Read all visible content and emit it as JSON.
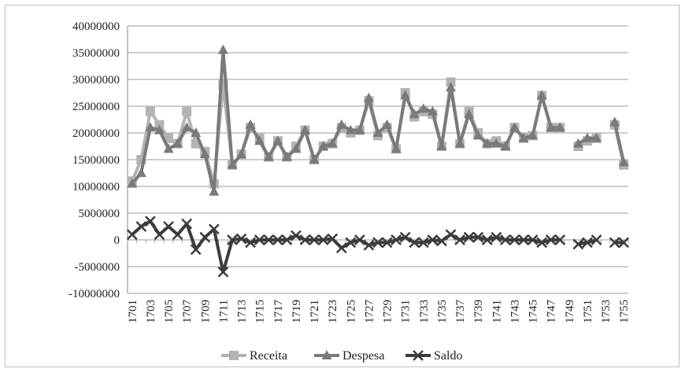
{
  "chart_data": {
    "type": "line",
    "title": "",
    "xlabel": "",
    "ylabel": "",
    "ylim": [
      -10000000,
      40000000
    ],
    "y_ticks": [
      "40000000",
      "35000000",
      "30000000",
      "25000000",
      "20000000",
      "15000000",
      "10000000",
      "5000000",
      "0",
      "-5000000",
      "-10000000"
    ],
    "x_tick_labels": [
      "1701",
      "1703",
      "1705",
      "1707",
      "1709",
      "1711",
      "1713",
      "1715",
      "1717",
      "1719",
      "1721",
      "1723",
      "1725",
      "1727",
      "1729",
      "1731",
      "1733",
      "1735",
      "1737",
      "1739",
      "1741",
      "1743",
      "1745",
      "1747",
      "1749",
      "1751",
      "1753",
      "1755"
    ],
    "x": [
      1701,
      1702,
      1703,
      1704,
      1705,
      1706,
      1707,
      1708,
      1709,
      1710,
      1711,
      1712,
      1713,
      1714,
      1715,
      1716,
      1717,
      1718,
      1719,
      1720,
      1721,
      1722,
      1723,
      1724,
      1725,
      1726,
      1727,
      1728,
      1729,
      1730,
      1731,
      1732,
      1733,
      1734,
      1735,
      1736,
      1737,
      1738,
      1739,
      1740,
      1741,
      1742,
      1743,
      1744,
      1745,
      1746,
      1747,
      1748,
      1749,
      1750,
      1751,
      1752,
      1753,
      1754,
      1755
    ],
    "grid": "horizontal",
    "legend_position": "bottom",
    "series": [
      {
        "name": "Receita",
        "color": "#b3b3b3",
        "marker": "square",
        "values": [
          11000000,
          15000000,
          24000000,
          21500000,
          19000000,
          18000000,
          24000000,
          18000000,
          16500000,
          10500000,
          29000000,
          14000000,
          16000000,
          21000000,
          19000000,
          15500000,
          18500000,
          15500000,
          17500000,
          20500000,
          15000000,
          17500000,
          18000000,
          21000000,
          20000000,
          20500000,
          26000000,
          19500000,
          21000000,
          17000000,
          27500000,
          23000000,
          24000000,
          23500000,
          17500000,
          29500000,
          18000000,
          24000000,
          20000000,
          18000000,
          18500000,
          17500000,
          21000000,
          19000000,
          19500000,
          27000000,
          21000000,
          21000000,
          null,
          17500000,
          18500000,
          19000000,
          null,
          21500000,
          14000000
        ]
      },
      {
        "name": "Despesa",
        "color": "#7a7a7a",
        "marker": "triangle",
        "values": [
          10500000,
          12500000,
          21000000,
          20500000,
          17000000,
          18000000,
          21000000,
          20000000,
          16000000,
          9000000,
          35500000,
          14000000,
          16000000,
          21500000,
          18500000,
          15500000,
          18500000,
          15500000,
          17000000,
          20500000,
          15000000,
          17500000,
          18000000,
          21500000,
          20500000,
          20500000,
          26500000,
          20000000,
          21500000,
          17000000,
          27000000,
          23500000,
          24500000,
          24000000,
          17500000,
          28500000,
          18000000,
          23500000,
          19500000,
          18000000,
          18000000,
          17500000,
          21000000,
          19000000,
          19500000,
          27000000,
          21000000,
          21000000,
          null,
          18000000,
          19000000,
          19000000,
          null,
          22000000,
          14500000
        ]
      },
      {
        "name": "Saldo",
        "color": "#3c3c3c",
        "marker": "x",
        "values": [
          1000000,
          2500000,
          3500000,
          1000000,
          2500000,
          1000000,
          3000000,
          -1800000,
          500000,
          2000000,
          -6000000,
          0,
          200000,
          -500000,
          0,
          0,
          0,
          0,
          800000,
          0,
          0,
          0,
          200000,
          -1500000,
          -500000,
          0,
          -1000000,
          -500000,
          -500000,
          0,
          500000,
          -500000,
          -500000,
          0,
          -200000,
          1000000,
          0,
          500000,
          500000,
          0,
          500000,
          0,
          0,
          0,
          0,
          -500000,
          0,
          0,
          null,
          -800000,
          -500000,
          0,
          null,
          -500000,
          -500000
        ]
      }
    ]
  }
}
